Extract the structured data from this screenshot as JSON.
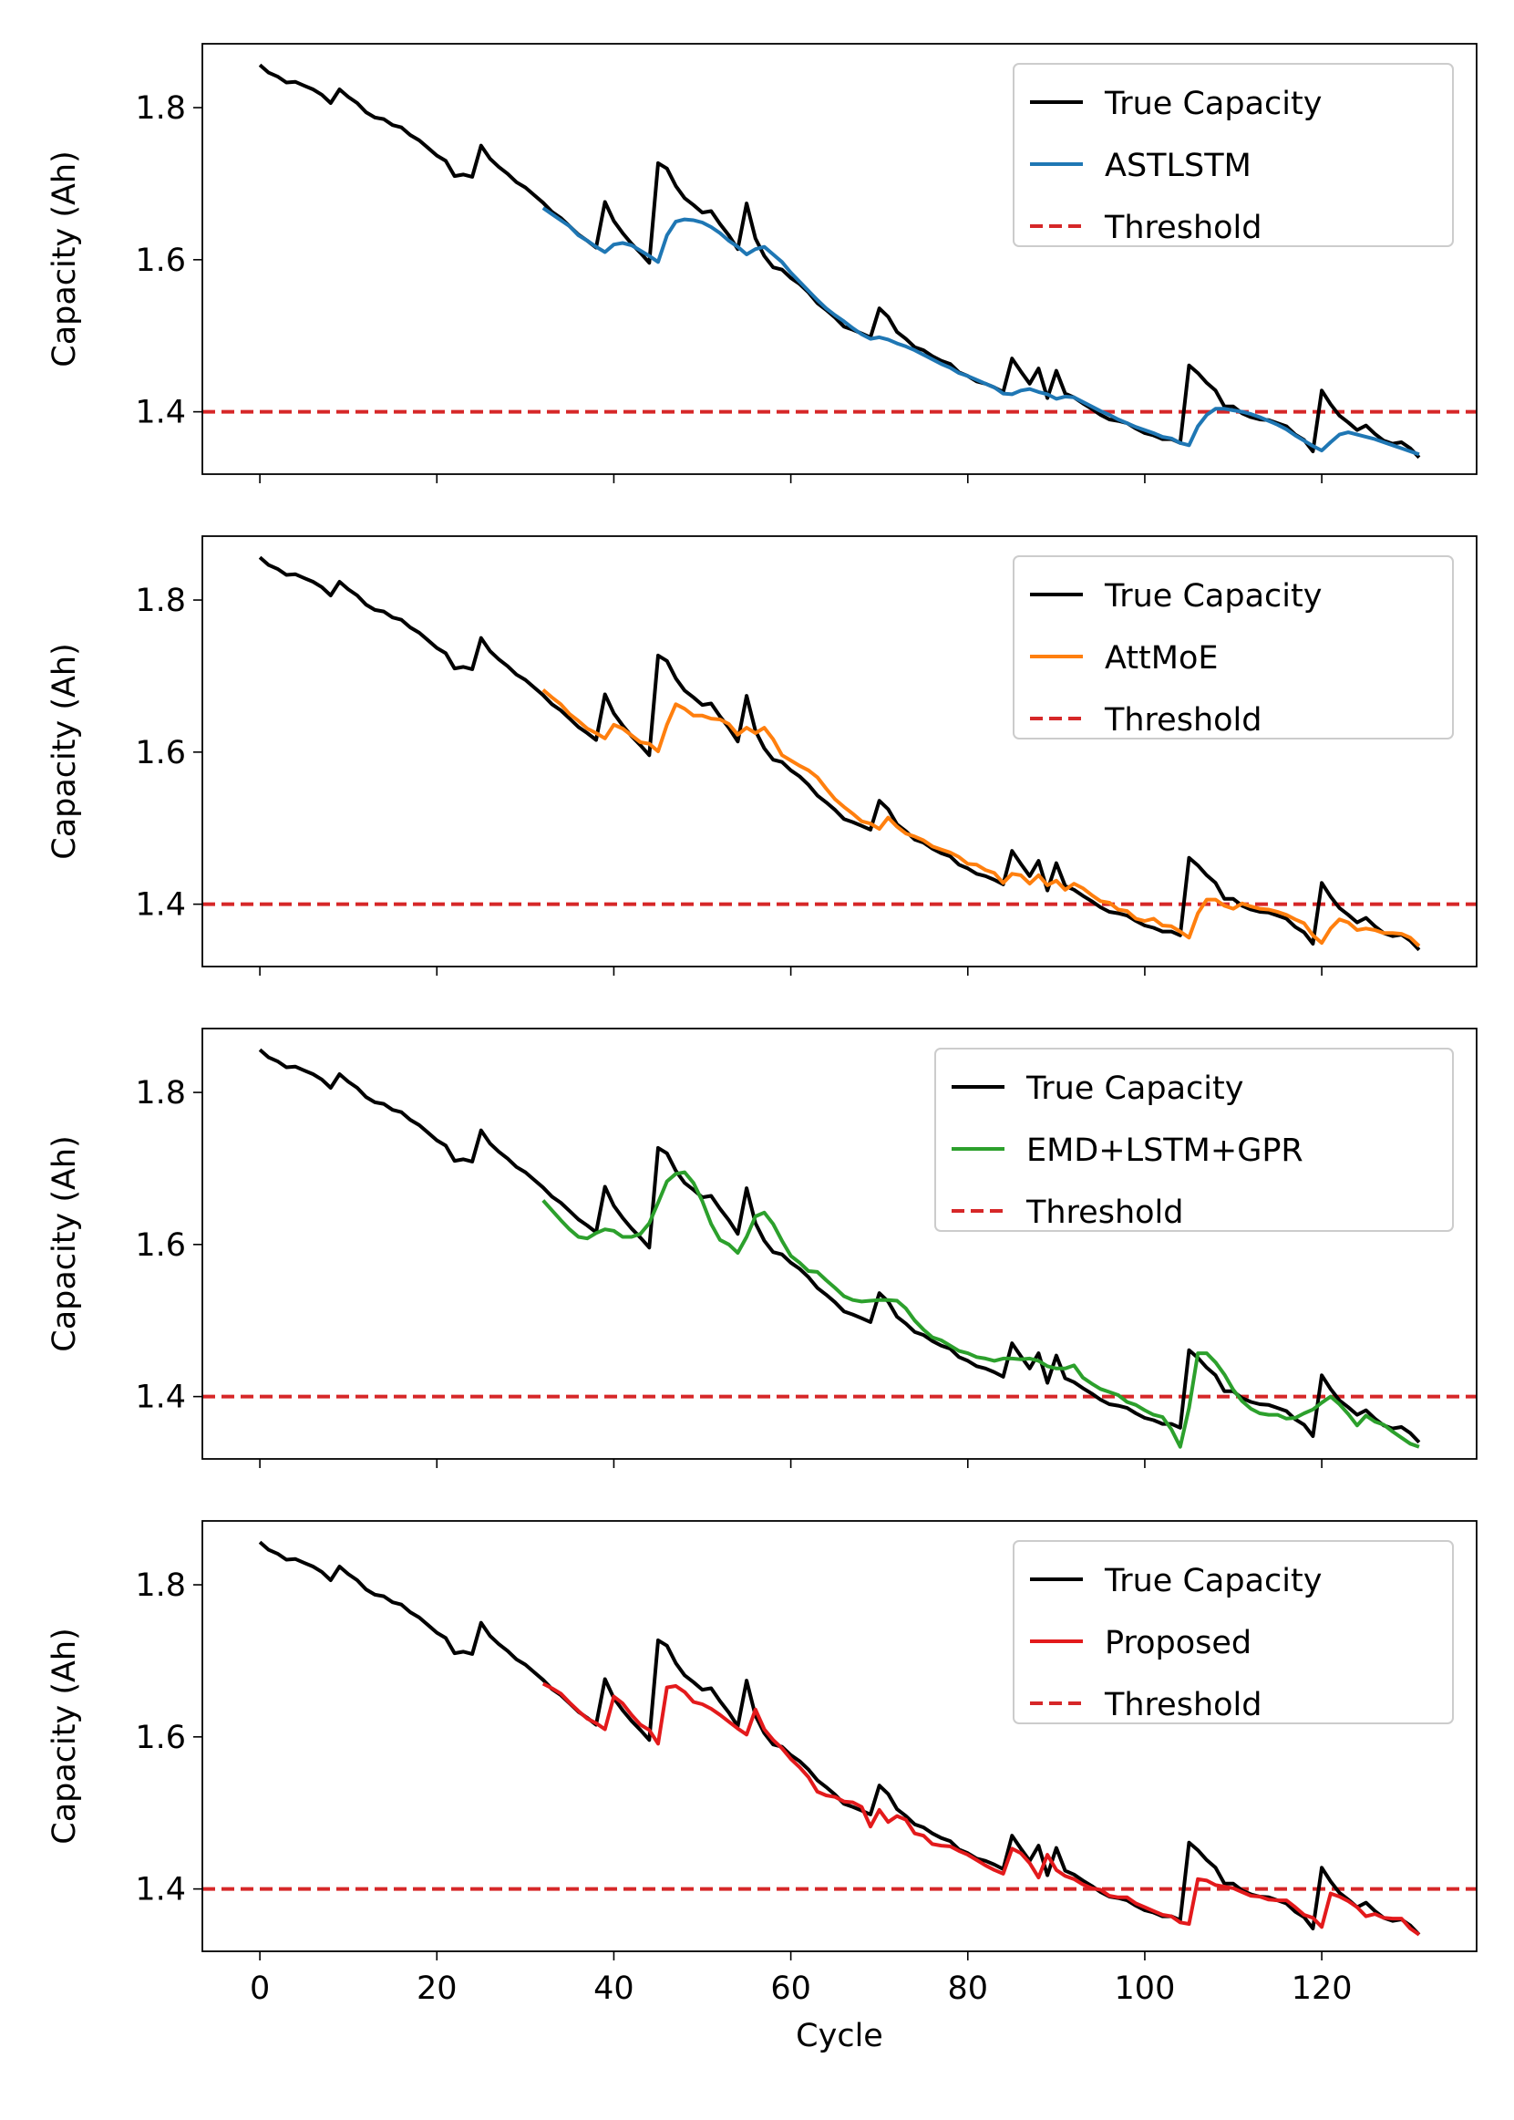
{
  "chart_data": {
    "type": "line",
    "xlabel": "Cycle",
    "shared_x_ticks": [
      0,
      20,
      40,
      60,
      80,
      100,
      120
    ],
    "threshold": 1.4,
    "colors": {
      "true": "#000000",
      "threshold": "#d62728",
      "ASTLSTM": "#1f77b4",
      "AttMoE": "#ff7f0e",
      "EMD+LSTM+GPR": "#2ca02c",
      "Proposed": "#e31a1c"
    },
    "true_capacity": {
      "name": "True Capacity",
      "x": [
        0,
        1,
        2,
        3,
        4,
        5,
        6,
        7,
        8,
        9,
        10,
        11,
        12,
        13,
        14,
        15,
        16,
        17,
        18,
        19,
        20,
        21,
        22,
        23,
        24,
        25,
        26,
        27,
        28,
        29,
        30,
        31,
        32,
        33,
        34,
        35,
        36,
        37,
        38,
        39,
        40,
        41,
        42,
        43,
        44,
        45,
        46,
        47,
        48,
        49,
        50,
        51,
        52,
        53,
        54,
        55,
        56,
        57,
        58,
        59,
        60,
        61,
        62,
        63,
        64,
        65,
        66,
        67,
        68,
        69,
        70,
        71,
        72,
        73,
        74,
        75,
        76,
        77,
        78,
        79,
        80,
        81,
        82,
        83,
        84,
        85,
        86,
        87,
        88,
        89,
        90,
        91,
        92,
        93,
        94,
        95,
        96,
        97,
        98,
        99,
        100,
        101,
        102,
        103,
        104,
        105,
        106,
        107,
        108,
        109,
        110,
        111,
        112,
        113,
        114,
        115,
        116,
        117,
        118,
        119,
        120,
        121,
        122,
        123,
        124,
        125,
        126,
        127,
        128,
        129,
        130,
        131
      ],
      "y": [
        1.856,
        1.846,
        1.841,
        1.833,
        1.834,
        1.829,
        1.824,
        1.817,
        1.806,
        1.824,
        1.814,
        1.806,
        1.794,
        1.787,
        1.785,
        1.777,
        1.774,
        1.764,
        1.757,
        1.747,
        1.737,
        1.73,
        1.71,
        1.712,
        1.709,
        1.75,
        1.733,
        1.722,
        1.713,
        1.702,
        1.695,
        1.685,
        1.675,
        1.663,
        1.655,
        1.644,
        1.633,
        1.625,
        1.616,
        1.676,
        1.651,
        1.635,
        1.621,
        1.609,
        1.596,
        1.727,
        1.72,
        1.697,
        1.681,
        1.672,
        1.662,
        1.664,
        1.647,
        1.632,
        1.614,
        1.674,
        1.628,
        1.605,
        1.59,
        1.587,
        1.576,
        1.568,
        1.557,
        1.543,
        1.534,
        1.524,
        1.512,
        1.508,
        1.503,
        1.498,
        1.536,
        1.525,
        1.505,
        1.496,
        1.485,
        1.481,
        1.473,
        1.467,
        1.463,
        1.452,
        1.447,
        1.44,
        1.437,
        1.432,
        1.426,
        1.47,
        1.453,
        1.437,
        1.457,
        1.418,
        1.454,
        1.424,
        1.419,
        1.411,
        1.404,
        1.396,
        1.39,
        1.388,
        1.385,
        1.378,
        1.372,
        1.369,
        1.364,
        1.364,
        1.359,
        1.461,
        1.451,
        1.438,
        1.428,
        1.407,
        1.407,
        1.398,
        1.393,
        1.39,
        1.389,
        1.385,
        1.381,
        1.37,
        1.363,
        1.348,
        1.428,
        1.41,
        1.395,
        1.386,
        1.376,
        1.382,
        1.371,
        1.362,
        1.358,
        1.36,
        1.352,
        1.34
      ]
    },
    "panels": [
      {
        "ylabel": "Capacity (Ah)",
        "y_ticks": [
          "1.4",
          "1.6",
          "1.8"
        ],
        "legend": [
          "True Capacity",
          "ASTLSTM",
          "Threshold"
        ],
        "model": "ASTLSTM",
        "x": [
          32,
          33,
          34,
          35,
          36,
          37,
          38,
          39,
          40,
          41,
          42,
          43,
          44,
          45,
          46,
          47,
          48,
          49,
          50,
          51,
          52,
          53,
          54,
          55,
          56,
          57,
          58,
          59,
          60,
          61,
          62,
          63,
          64,
          65,
          66,
          67,
          68,
          69,
          70,
          71,
          72,
          73,
          74,
          75,
          76,
          77,
          78,
          79,
          80,
          81,
          82,
          83,
          84,
          85,
          86,
          87,
          88,
          89,
          90,
          91,
          92,
          93,
          94,
          95,
          96,
          97,
          98,
          99,
          100,
          101,
          102,
          103,
          104,
          105,
          106,
          107,
          108,
          109,
          110,
          111,
          112,
          113,
          114,
          115,
          116,
          117,
          118,
          119,
          120,
          121,
          122,
          123,
          124,
          125,
          126,
          127,
          128,
          129,
          130,
          131
        ],
        "y": [
          1.668,
          1.66,
          1.652,
          1.644,
          1.632,
          1.625,
          1.617,
          1.61,
          1.62,
          1.622,
          1.619,
          1.612,
          1.605,
          1.597,
          1.632,
          1.65,
          1.653,
          1.652,
          1.649,
          1.643,
          1.635,
          1.625,
          1.617,
          1.607,
          1.614,
          1.617,
          1.607,
          1.597,
          1.583,
          1.571,
          1.559,
          1.547,
          1.536,
          1.527,
          1.519,
          1.51,
          1.502,
          1.496,
          1.498,
          1.495,
          1.49,
          1.486,
          1.481,
          1.475,
          1.469,
          1.463,
          1.458,
          1.451,
          1.447,
          1.442,
          1.437,
          1.432,
          1.424,
          1.423,
          1.428,
          1.43,
          1.426,
          1.423,
          1.417,
          1.42,
          1.419,
          1.413,
          1.407,
          1.401,
          1.396,
          1.39,
          1.385,
          1.38,
          1.376,
          1.372,
          1.367,
          1.365,
          1.359,
          1.356,
          1.381,
          1.396,
          1.404,
          1.404,
          1.402,
          1.4,
          1.397,
          1.393,
          1.388,
          1.383,
          1.377,
          1.369,
          1.362,
          1.355,
          1.349,
          1.36,
          1.37,
          1.373,
          1.37,
          1.367,
          1.364,
          1.36,
          1.356,
          1.352,
          1.348,
          1.344
        ]
      },
      {
        "ylabel": "Capacity (Ah)",
        "y_ticks": [
          "1.4",
          "1.6",
          "1.8"
        ],
        "legend": [
          "True Capacity",
          "AttMoE",
          "Threshold"
        ],
        "model": "AttMoE",
        "x": [
          32,
          33,
          34,
          35,
          36,
          37,
          38,
          39,
          40,
          41,
          42,
          43,
          44,
          45,
          46,
          47,
          48,
          49,
          50,
          51,
          52,
          53,
          54,
          55,
          56,
          57,
          58,
          59,
          60,
          61,
          62,
          63,
          64,
          65,
          66,
          67,
          68,
          69,
          70,
          71,
          72,
          73,
          74,
          75,
          76,
          77,
          78,
          79,
          80,
          81,
          82,
          83,
          84,
          85,
          86,
          87,
          88,
          89,
          90,
          91,
          92,
          93,
          94,
          95,
          96,
          97,
          98,
          99,
          100,
          101,
          102,
          103,
          104,
          105,
          106,
          107,
          108,
          109,
          110,
          111,
          112,
          113,
          114,
          115,
          116,
          117,
          118,
          119,
          120,
          121,
          122,
          123,
          124,
          125,
          126,
          127,
          128,
          129,
          130,
          131
        ],
        "y": [
          1.682,
          1.672,
          1.663,
          1.65,
          1.641,
          1.631,
          1.625,
          1.618,
          1.636,
          1.631,
          1.622,
          1.613,
          1.611,
          1.601,
          1.636,
          1.663,
          1.657,
          1.648,
          1.648,
          1.644,
          1.643,
          1.637,
          1.623,
          1.632,
          1.625,
          1.632,
          1.617,
          1.596,
          1.589,
          1.582,
          1.576,
          1.567,
          1.552,
          1.538,
          1.528,
          1.519,
          1.509,
          1.506,
          1.499,
          1.514,
          1.502,
          1.493,
          1.489,
          1.484,
          1.476,
          1.472,
          1.468,
          1.462,
          1.453,
          1.452,
          1.445,
          1.441,
          1.428,
          1.44,
          1.438,
          1.427,
          1.438,
          1.425,
          1.431,
          1.419,
          1.427,
          1.421,
          1.412,
          1.404,
          1.402,
          1.393,
          1.391,
          1.381,
          1.378,
          1.381,
          1.372,
          1.371,
          1.364,
          1.356,
          1.388,
          1.406,
          1.406,
          1.398,
          1.394,
          1.401,
          1.397,
          1.394,
          1.393,
          1.39,
          1.386,
          1.38,
          1.375,
          1.359,
          1.349,
          1.368,
          1.38,
          1.376,
          1.366,
          1.368,
          1.366,
          1.362,
          1.362,
          1.361,
          1.356,
          1.345
        ]
      },
      {
        "ylabel": "Capacity (Ah)",
        "y_ticks": [
          "1.4",
          "1.6",
          "1.8"
        ],
        "legend": [
          "True Capacity",
          "EMD+LSTM+GPR",
          "Threshold"
        ],
        "model": "EMD+LSTM+GPR",
        "x": [
          32,
          33,
          34,
          35,
          36,
          37,
          38,
          39,
          40,
          41,
          42,
          43,
          44,
          45,
          46,
          47,
          48,
          49,
          50,
          51,
          52,
          53,
          54,
          55,
          56,
          57,
          58,
          59,
          60,
          61,
          62,
          63,
          64,
          65,
          66,
          67,
          68,
          69,
          70,
          71,
          72,
          73,
          74,
          75,
          76,
          77,
          78,
          79,
          80,
          81,
          82,
          83,
          84,
          85,
          86,
          87,
          88,
          89,
          90,
          91,
          92,
          93,
          94,
          95,
          96,
          97,
          98,
          99,
          100,
          101,
          102,
          103,
          104,
          105,
          106,
          107,
          108,
          109,
          110,
          111,
          112,
          113,
          114,
          115,
          116,
          117,
          118,
          119,
          120,
          121,
          122,
          123,
          124,
          125,
          126,
          127,
          128,
          129,
          130,
          131
        ],
        "y": [
          1.658,
          1.645,
          1.632,
          1.62,
          1.61,
          1.608,
          1.615,
          1.62,
          1.618,
          1.61,
          1.61,
          1.614,
          1.628,
          1.655,
          1.683,
          1.693,
          1.695,
          1.681,
          1.657,
          1.627,
          1.606,
          1.6,
          1.589,
          1.61,
          1.637,
          1.642,
          1.627,
          1.605,
          1.585,
          1.576,
          1.565,
          1.564,
          1.553,
          1.543,
          1.532,
          1.527,
          1.525,
          1.526,
          1.527,
          1.527,
          1.526,
          1.516,
          1.5,
          1.488,
          1.478,
          1.474,
          1.467,
          1.46,
          1.457,
          1.452,
          1.45,
          1.447,
          1.45,
          1.45,
          1.449,
          1.45,
          1.447,
          1.44,
          1.437,
          1.437,
          1.441,
          1.425,
          1.417,
          1.41,
          1.406,
          1.402,
          1.393,
          1.389,
          1.382,
          1.376,
          1.373,
          1.357,
          1.334,
          1.385,
          1.457,
          1.457,
          1.445,
          1.429,
          1.409,
          1.394,
          1.384,
          1.378,
          1.376,
          1.376,
          1.371,
          1.372,
          1.378,
          1.383,
          1.392,
          1.4,
          1.39,
          1.377,
          1.362,
          1.375,
          1.367,
          1.363,
          1.354,
          1.346,
          1.338,
          1.334
        ]
      },
      {
        "ylabel": "Capacity (Ah)",
        "y_ticks": [
          "1.4",
          "1.6",
          "1.8"
        ],
        "legend": [
          "True Capacity",
          "Proposed",
          "Threshold"
        ],
        "model": "Proposed",
        "x": [
          32,
          33,
          34,
          35,
          36,
          37,
          38,
          39,
          40,
          41,
          42,
          43,
          44,
          45,
          46,
          47,
          48,
          49,
          50,
          51,
          52,
          53,
          54,
          55,
          56,
          57,
          58,
          59,
          60,
          61,
          62,
          63,
          64,
          65,
          66,
          67,
          68,
          69,
          70,
          71,
          72,
          73,
          74,
          75,
          76,
          77,
          78,
          79,
          80,
          81,
          82,
          83,
          84,
          85,
          86,
          87,
          88,
          89,
          90,
          91,
          92,
          93,
          94,
          95,
          96,
          97,
          98,
          99,
          100,
          101,
          102,
          103,
          104,
          105,
          106,
          107,
          108,
          109,
          110,
          111,
          112,
          113,
          114,
          115,
          116,
          117,
          118,
          119,
          120,
          121,
          122,
          123,
          124,
          125,
          126,
          127,
          128,
          129,
          130,
          131
        ],
        "y": [
          1.67,
          1.664,
          1.657,
          1.645,
          1.634,
          1.624,
          1.618,
          1.61,
          1.653,
          1.644,
          1.629,
          1.616,
          1.609,
          1.591,
          1.665,
          1.667,
          1.659,
          1.646,
          1.643,
          1.637,
          1.629,
          1.62,
          1.611,
          1.603,
          1.636,
          1.61,
          1.596,
          1.585,
          1.571,
          1.56,
          1.547,
          1.528,
          1.523,
          1.521,
          1.515,
          1.514,
          1.508,
          1.482,
          1.504,
          1.488,
          1.496,
          1.491,
          1.473,
          1.47,
          1.459,
          1.457,
          1.456,
          1.45,
          1.445,
          1.438,
          1.431,
          1.425,
          1.42,
          1.453,
          1.447,
          1.434,
          1.415,
          1.445,
          1.425,
          1.417,
          1.413,
          1.406,
          1.401,
          1.399,
          1.391,
          1.389,
          1.389,
          1.381,
          1.376,
          1.371,
          1.366,
          1.364,
          1.356,
          1.354,
          1.413,
          1.411,
          1.405,
          1.403,
          1.401,
          1.396,
          1.391,
          1.39,
          1.386,
          1.385,
          1.385,
          1.376,
          1.366,
          1.362,
          1.35,
          1.394,
          1.39,
          1.384,
          1.376,
          1.364,
          1.367,
          1.362,
          1.361,
          1.361,
          1.348,
          1.34
        ]
      }
    ]
  }
}
